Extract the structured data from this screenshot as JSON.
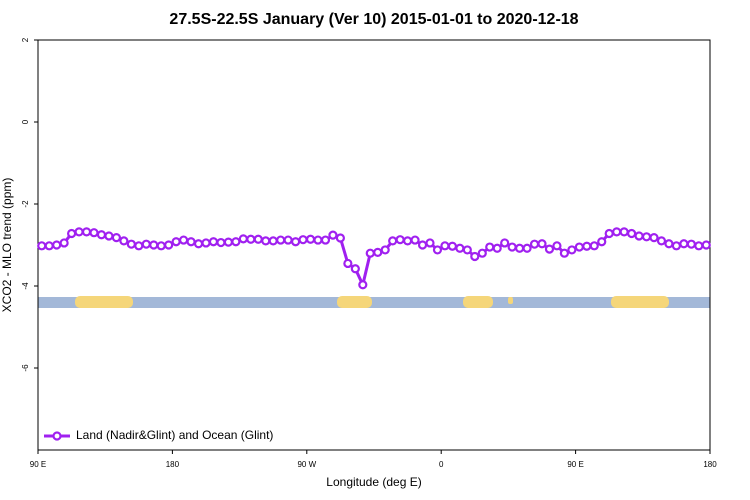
{
  "chart_data": {
    "type": "line",
    "title": "27.5S-22.5S January (Ver 10)   2015-01-01 to 2020-12-18",
    "x_label": "Longitude (deg E)",
    "y_label": "XCO2 - MLO trend (ppm)",
    "xlim": [
      90,
      540
    ],
    "ylim": [
      -8,
      2
    ],
    "xticks": [
      {
        "value": 90,
        "label": "90 E"
      },
      180,
      {
        "value": 270,
        "label": "90 W"
      },
      {
        "value": 360,
        "label": "0"
      },
      {
        "value": 450,
        "label": "90 E"
      },
      {
        "value": 540,
        "label": "180"
      }
    ],
    "yticks": [
      -6,
      -4,
      -2,
      0,
      2
    ],
    "legend": "bottom-left",
    "x": [
      92.5,
      97.5,
      102.5,
      107.5,
      112.5,
      117.5,
      122.5,
      127.5,
      132.5,
      137.5,
      142.5,
      147.5,
      152.5,
      157.5,
      162.5,
      167.5,
      172.5,
      177.5,
      182.5,
      187.5,
      192.5,
      197.5,
      202.5,
      207.5,
      212.5,
      217.5,
      222.5,
      227.5,
      232.5,
      237.5,
      242.5,
      247.5,
      252.5,
      257.5,
      262.5,
      267.5,
      272.5,
      277.5,
      282.5,
      287.5,
      292.5,
      297.5,
      302.5,
      307.5,
      312.5,
      317.5,
      322.5,
      327.5,
      332.5,
      337.5,
      342.5,
      347.5,
      352.5,
      357.5,
      362.5,
      367.5,
      372.5,
      377.5,
      382.5,
      387.5,
      392.5,
      397.5,
      402.5,
      407.5,
      412.5,
      417.5,
      422.5,
      427.5,
      432.5,
      437.5,
      442.5,
      447.5,
      452.5,
      457.5,
      462.5,
      467.5,
      472.5,
      477.5,
      482.5,
      487.5,
      492.5,
      497.5,
      502.5,
      507.5,
      512.5,
      517.5,
      522.5,
      527.5,
      532.5,
      537.5
    ],
    "series": [
      {
        "name": "Land (Nadir&Glint) and Ocean (Glint)",
        "color": "#a020f0",
        "values": [
          -3.02,
          -3.02,
          -3.0,
          -2.95,
          -2.72,
          -2.68,
          -2.68,
          -2.7,
          -2.75,
          -2.78,
          -2.82,
          -2.9,
          -2.98,
          -3.02,
          -2.98,
          -3.0,
          -3.02,
          -3.0,
          -2.92,
          -2.88,
          -2.92,
          -2.97,
          -2.95,
          -2.92,
          -2.94,
          -2.93,
          -2.92,
          -2.85,
          -2.86,
          -2.86,
          -2.9,
          -2.9,
          -2.88,
          -2.88,
          -2.92,
          -2.87,
          -2.86,
          -2.88,
          -2.88,
          -2.76,
          -2.83,
          -3.45,
          -3.58,
          -3.97,
          -3.2,
          -3.18,
          -3.12,
          -2.9,
          -2.87,
          -2.9,
          -2.88,
          -3.0,
          -2.95,
          -3.12,
          -3.02,
          -3.03,
          -3.08,
          -3.12,
          -3.28,
          -3.2,
          -3.05,
          -3.08,
          -2.95,
          -3.05,
          -3.08,
          -3.08,
          -2.98,
          -2.97,
          -3.1,
          -3.02,
          -3.2,
          -3.12,
          -3.05,
          -3.03,
          -3.02,
          -2.92,
          -2.72,
          -2.68,
          -2.68,
          -2.72,
          -2.78,
          -2.8,
          -2.82,
          -2.9,
          -2.97,
          -3.02,
          -2.97,
          -2.98,
          -3.02,
          -3.0
        ]
      }
    ]
  }
}
